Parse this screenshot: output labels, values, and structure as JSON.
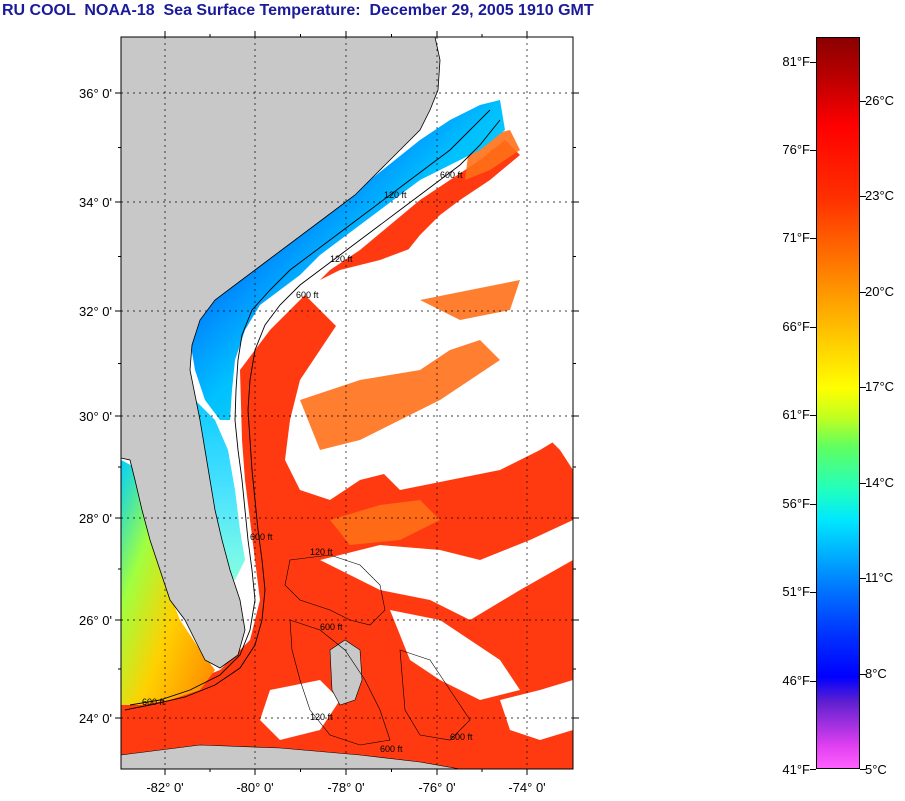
{
  "title": "RU COOL  NOAA-18  Sea Surface Temperature:  December 29, 2005 1910 GMT",
  "map": {
    "lat_labels": [
      "36° 0'",
      "34° 0'",
      "32° 0'",
      "30° 0'",
      "28° 0'",
      "26° 0'",
      "24° 0'"
    ],
    "lon_labels": [
      "-82° 0'",
      "-80° 0'",
      "-78° 0'",
      "-76° 0'",
      "-74° 0'"
    ],
    "contour_labels": [
      "600 ft",
      "120 ft",
      "600 ft",
      "120 ft",
      "600 ft",
      "120 ft",
      "600 ft",
      "600 ft",
      "120 ft",
      "600 ft",
      "600 ft"
    ],
    "colors": {
      "land": "#c8c8c8",
      "cloud": "#ffffff",
      "warm": "#ff3a10",
      "cold": "#0000ff"
    }
  },
  "colorbar": {
    "fahrenheit": [
      "81°F",
      "76°F",
      "71°F",
      "66°F",
      "61°F",
      "56°F",
      "51°F",
      "46°F",
      "41°F"
    ],
    "celsius": [
      "26°C",
      "23°C",
      "20°C",
      "17°C",
      "14°C",
      "11°C",
      "8°C",
      "5°C"
    ]
  }
}
